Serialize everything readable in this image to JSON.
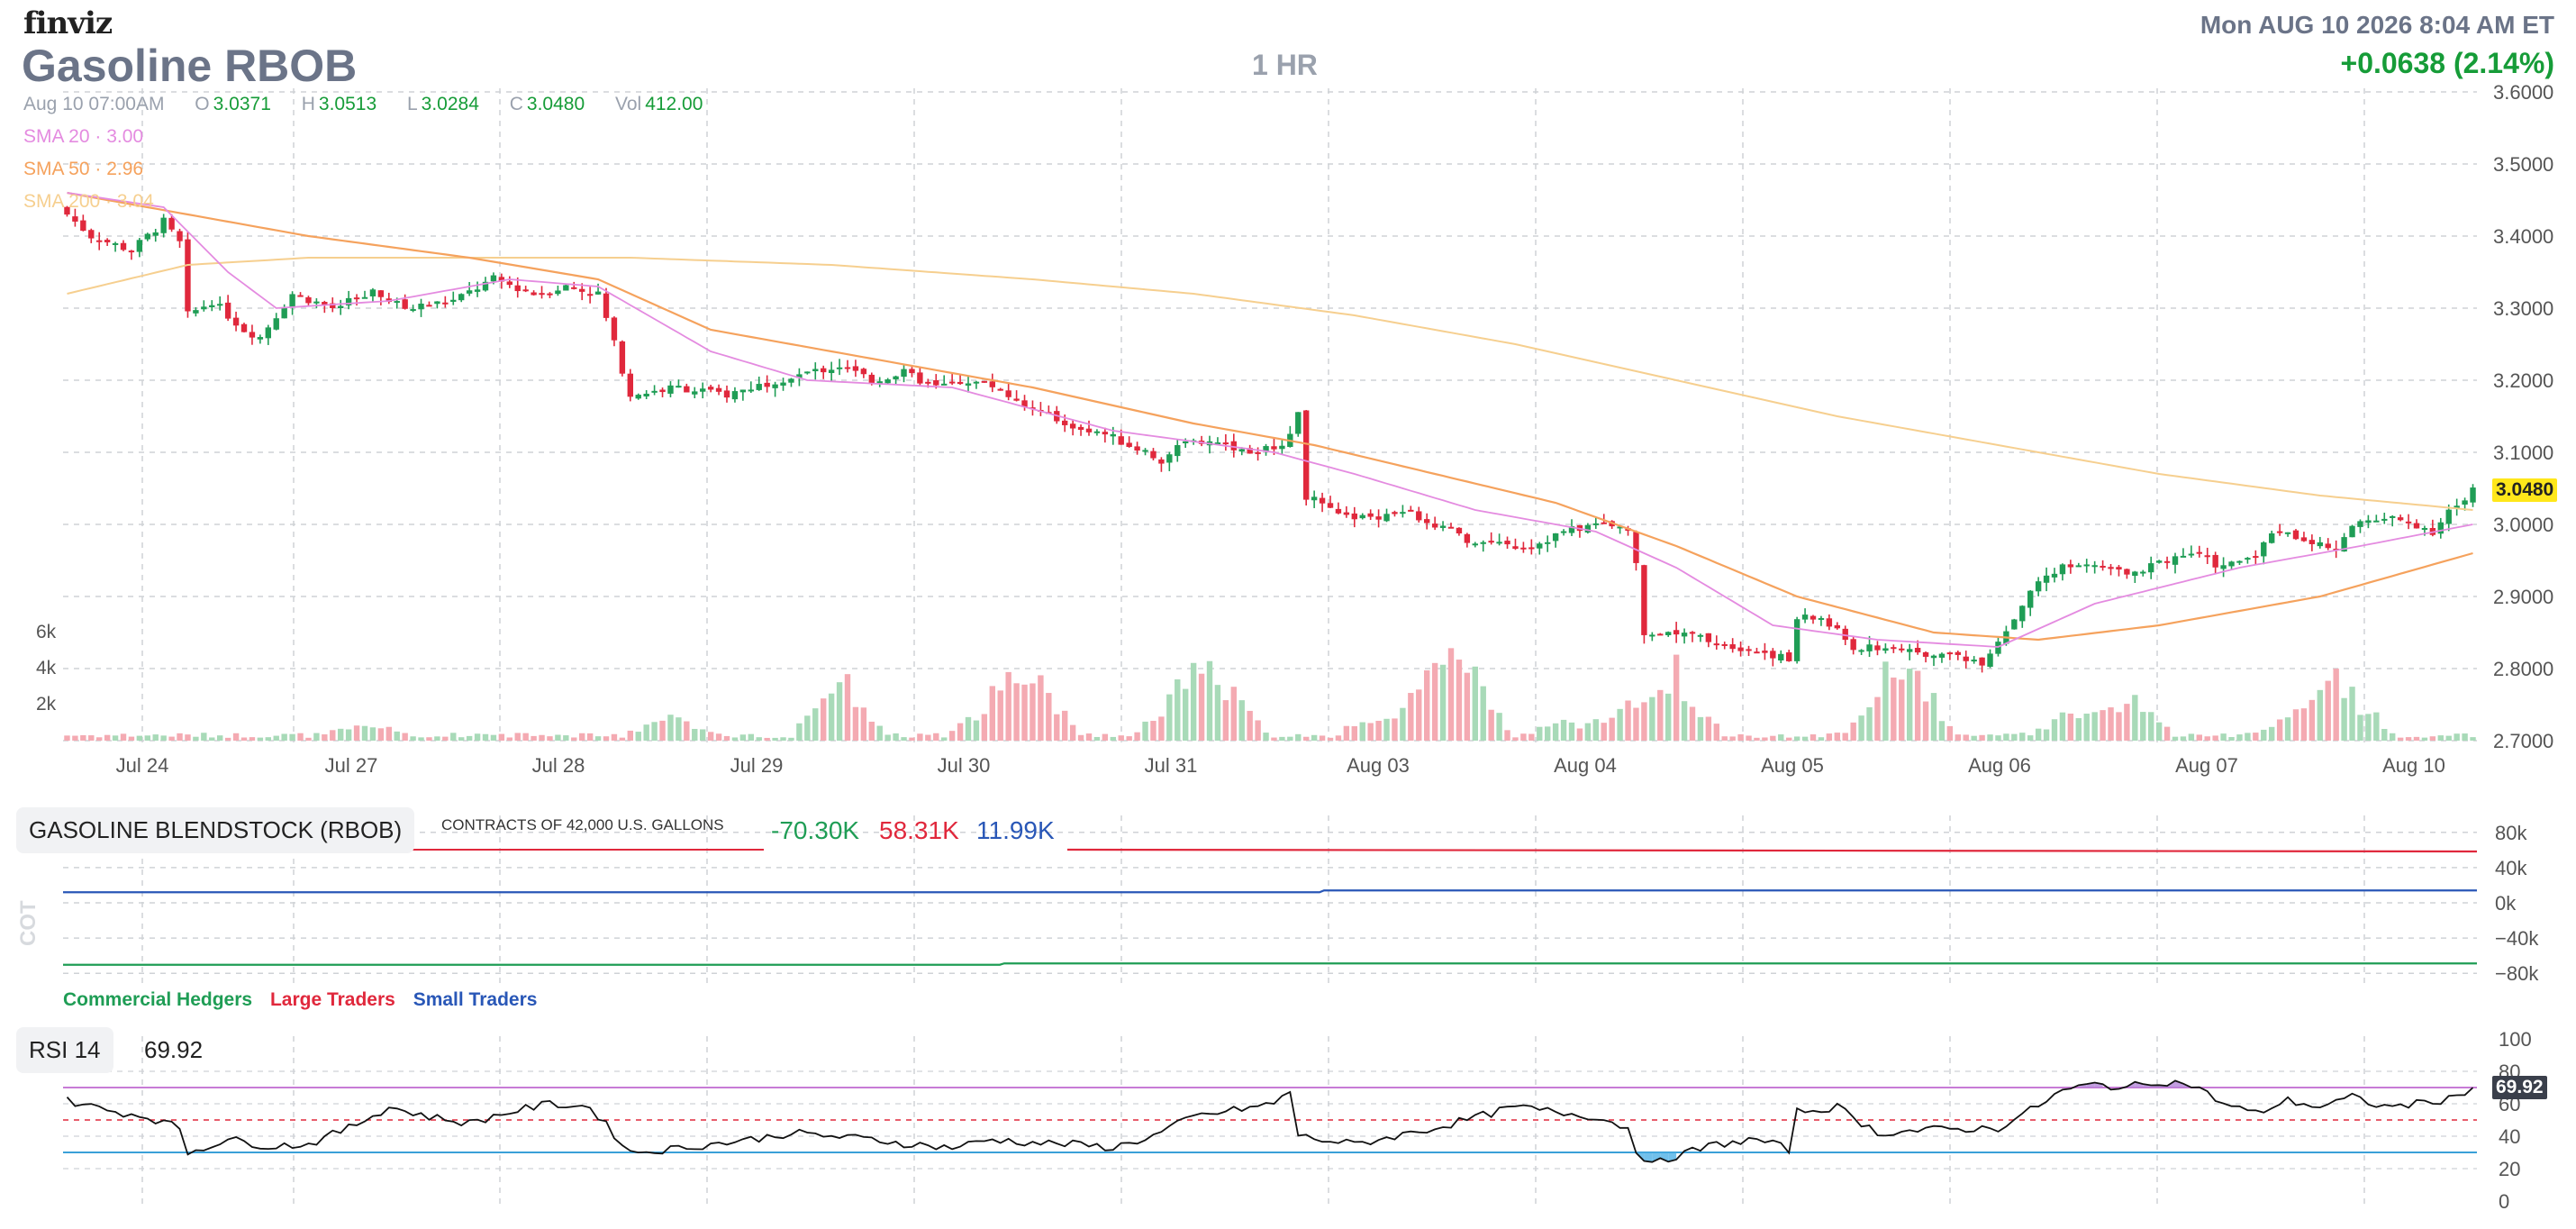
{
  "logo": "finviz",
  "header": {
    "title": "Gasoline RBOB",
    "timeframe": "1 HR",
    "datetime": "Mon AUG 10 2026 8:04 AM ET",
    "change": "+0.0638 (2.14%)"
  },
  "ohlc": {
    "date": "Aug 10 07:00AM",
    "open_label": "O",
    "open": "3.0371",
    "high_label": "H",
    "high": "3.0513",
    "low_label": "L",
    "low": "3.0284",
    "close_label": "C",
    "close": "3.0480",
    "vol_label": "Vol",
    "vol": "412.00"
  },
  "sma": [
    {
      "text": "SMA 20 · 3.00",
      "color": "#e48be0"
    },
    {
      "text": "SMA 50 · 2.96",
      "color": "#f5a25d"
    },
    {
      "text": "SMA 200 · 3.04",
      "color": "#f6cf8f"
    }
  ],
  "colors": {
    "up": "#1f9d55",
    "down": "#e0283c",
    "vol_up": "#a8dab8",
    "vol_down": "#f4aab2",
    "grid": "#cfd2d6"
  },
  "price_tag": "3.0480",
  "chart_data": [
    {
      "type": "line",
      "name": "price",
      "y_ticks": [
        "3.6000",
        "3.5000",
        "3.4000",
        "3.3000",
        "3.2000",
        "3.1000",
        "3.0000",
        "2.9000",
        "2.8000",
        "2.7000"
      ],
      "ylim": [
        2.7,
        3.6
      ],
      "x_ticks": [
        "Jul 24",
        "Jul 27",
        "Jul 28",
        "Jul 29",
        "Jul 30",
        "Jul 31",
        "Aug 03",
        "Aug 04",
        "Aug 05",
        "Aug 06",
        "Aug 07",
        "Aug 10"
      ],
      "close_anchors": [
        [
          0,
          3.43
        ],
        [
          3,
          3.4
        ],
        [
          8,
          3.38
        ],
        [
          12,
          3.42
        ],
        [
          14,
          3.39
        ],
        [
          15,
          3.29
        ],
        [
          18,
          3.31
        ],
        [
          22,
          3.27
        ],
        [
          24,
          3.26
        ],
        [
          28,
          3.32
        ],
        [
          33,
          3.3
        ],
        [
          38,
          3.32
        ],
        [
          42,
          3.3
        ],
        [
          48,
          3.31
        ],
        [
          53,
          3.34
        ],
        [
          58,
          3.32
        ],
        [
          62,
          3.33
        ],
        [
          66,
          3.32
        ],
        [
          70,
          3.18
        ],
        [
          76,
          3.19
        ],
        [
          82,
          3.18
        ],
        [
          88,
          3.2
        ],
        [
          92,
          3.21
        ],
        [
          96,
          3.22
        ],
        [
          100,
          3.2
        ],
        [
          104,
          3.21
        ],
        [
          108,
          3.19
        ],
        [
          112,
          3.2
        ],
        [
          116,
          3.19
        ],
        [
          120,
          3.16
        ],
        [
          124,
          3.14
        ],
        [
          128,
          3.13
        ],
        [
          132,
          3.11
        ],
        [
          136,
          3.09
        ],
        [
          140,
          3.12
        ],
        [
          144,
          3.11
        ],
        [
          148,
          3.1
        ],
        [
          152,
          3.12
        ],
        [
          153,
          3.16
        ],
        [
          154,
          3.04
        ],
        [
          158,
          3.01
        ],
        [
          162,
          3.01
        ],
        [
          166,
          3.02
        ],
        [
          170,
          3.0
        ],
        [
          174,
          2.98
        ],
        [
          178,
          2.97
        ],
        [
          182,
          2.97
        ],
        [
          186,
          2.99
        ],
        [
          190,
          3.0
        ],
        [
          194,
          2.99
        ],
        [
          195,
          2.95
        ],
        [
          196,
          2.85
        ],
        [
          200,
          2.85
        ],
        [
          204,
          2.84
        ],
        [
          208,
          2.83
        ],
        [
          212,
          2.82
        ],
        [
          214,
          2.81
        ],
        [
          215,
          2.87
        ],
        [
          218,
          2.87
        ],
        [
          222,
          2.83
        ],
        [
          226,
          2.83
        ],
        [
          230,
          2.82
        ],
        [
          234,
          2.82
        ],
        [
          238,
          2.81
        ],
        [
          240,
          2.84
        ],
        [
          242,
          2.87
        ],
        [
          244,
          2.91
        ],
        [
          248,
          2.94
        ],
        [
          252,
          2.94
        ],
        [
          256,
          2.93
        ],
        [
          260,
          2.95
        ],
        [
          264,
          2.96
        ],
        [
          268,
          2.94
        ],
        [
          272,
          2.96
        ],
        [
          274,
          2.99
        ],
        [
          278,
          2.98
        ],
        [
          282,
          2.96
        ],
        [
          284,
          3.0
        ],
        [
          288,
          3.01
        ],
        [
          292,
          3.0
        ],
        [
          294,
          2.99
        ],
        [
          296,
          3.02
        ],
        [
          298,
          3.03
        ],
        [
          299,
          3.048
        ]
      ],
      "sma20_anchors": [
        [
          0,
          3.46
        ],
        [
          12,
          3.44
        ],
        [
          20,
          3.35
        ],
        [
          26,
          3.3
        ],
        [
          40,
          3.31
        ],
        [
          55,
          3.34
        ],
        [
          66,
          3.33
        ],
        [
          80,
          3.24
        ],
        [
          92,
          3.2
        ],
        [
          110,
          3.19
        ],
        [
          130,
          3.13
        ],
        [
          150,
          3.1
        ],
        [
          160,
          3.07
        ],
        [
          175,
          3.02
        ],
        [
          190,
          2.99
        ],
        [
          200,
          2.94
        ],
        [
          212,
          2.86
        ],
        [
          225,
          2.84
        ],
        [
          240,
          2.83
        ],
        [
          252,
          2.89
        ],
        [
          270,
          2.94
        ],
        [
          285,
          2.97
        ],
        [
          299,
          3.0
        ]
      ],
      "sma50_anchors": [
        [
          0,
          3.46
        ],
        [
          15,
          3.43
        ],
        [
          30,
          3.4
        ],
        [
          50,
          3.37
        ],
        [
          66,
          3.34
        ],
        [
          80,
          3.27
        ],
        [
          100,
          3.23
        ],
        [
          120,
          3.19
        ],
        [
          140,
          3.14
        ],
        [
          155,
          3.11
        ],
        [
          170,
          3.07
        ],
        [
          185,
          3.03
        ],
        [
          200,
          2.97
        ],
        [
          215,
          2.9
        ],
        [
          232,
          2.85
        ],
        [
          245,
          2.84
        ],
        [
          260,
          2.86
        ],
        [
          280,
          2.9
        ],
        [
          299,
          2.96
        ]
      ],
      "sma200_anchors": [
        [
          0,
          3.32
        ],
        [
          15,
          3.36
        ],
        [
          30,
          3.37
        ],
        [
          50,
          3.37
        ],
        [
          70,
          3.37
        ],
        [
          95,
          3.36
        ],
        [
          120,
          3.34
        ],
        [
          140,
          3.32
        ],
        [
          160,
          3.29
        ],
        [
          180,
          3.25
        ],
        [
          200,
          3.2
        ],
        [
          220,
          3.15
        ],
        [
          240,
          3.11
        ],
        [
          260,
          3.07
        ],
        [
          280,
          3.04
        ],
        [
          299,
          3.02
        ]
      ]
    },
    {
      "type": "bar",
      "name": "volume",
      "y_ticks": [
        "6k",
        "4k",
        "2k"
      ],
      "bursts": [
        [
          38,
          0.2
        ],
        [
          75,
          0.3
        ],
        [
          96,
          1.0
        ],
        [
          115,
          0.55
        ],
        [
          120,
          1.0
        ],
        [
          138,
          0.6
        ],
        [
          143,
          1.0
        ],
        [
          163,
          0.3
        ],
        [
          170,
          0.9
        ],
        [
          174,
          1.0
        ],
        [
          186,
          0.2
        ],
        [
          194,
          0.45
        ],
        [
          200,
          1.0
        ],
        [
          226,
          0.5
        ],
        [
          229,
          1.0
        ],
        [
          250,
          0.4
        ],
        [
          256,
          0.6
        ],
        [
          278,
          0.45
        ],
        [
          283,
          0.8
        ]
      ]
    },
    {
      "type": "line",
      "name": "cot",
      "y_ticks": [
        "80k",
        "40k",
        "0k",
        "−40k",
        "−80k"
      ],
      "ylim": [
        -90,
        90
      ],
      "values": [
        "-70.30K",
        "58.31K",
        "11.99K"
      ],
      "legend": [
        "Commercial Hedgers",
        "Large Traders",
        "Small Traders"
      ],
      "colors": [
        "#1f9d55",
        "#e0283c",
        "#2957b7"
      ]
    },
    {
      "type": "line",
      "name": "rsi",
      "y_ticks": [
        "100",
        "80",
        "60",
        "40",
        "20",
        "0"
      ],
      "ylim": [
        0,
        100
      ],
      "levels": [
        70,
        50,
        30
      ],
      "anchors": [
        [
          0,
          62
        ],
        [
          5,
          56
        ],
        [
          10,
          52
        ],
        [
          14,
          45
        ],
        [
          15,
          30
        ],
        [
          20,
          38
        ],
        [
          25,
          34
        ],
        [
          30,
          35
        ],
        [
          35,
          45
        ],
        [
          40,
          58
        ],
        [
          45,
          52
        ],
        [
          50,
          48
        ],
        [
          55,
          55
        ],
        [
          60,
          60
        ],
        [
          65,
          58
        ],
        [
          70,
          30
        ],
        [
          75,
          32
        ],
        [
          80,
          35
        ],
        [
          85,
          38
        ],
        [
          90,
          42
        ],
        [
          95,
          40
        ],
        [
          100,
          38
        ],
        [
          105,
          35
        ],
        [
          110,
          33
        ],
        [
          115,
          38
        ],
        [
          120,
          36
        ],
        [
          125,
          35
        ],
        [
          130,
          33
        ],
        [
          135,
          40
        ],
        [
          140,
          52
        ],
        [
          145,
          56
        ],
        [
          150,
          60
        ],
        [
          152,
          68
        ],
        [
          153,
          40
        ],
        [
          160,
          35
        ],
        [
          170,
          45
        ],
        [
          180,
          58
        ],
        [
          190,
          52
        ],
        [
          194,
          45
        ],
        [
          195,
          32
        ],
        [
          197,
          22
        ],
        [
          200,
          28
        ],
        [
          205,
          35
        ],
        [
          210,
          38
        ],
        [
          214,
          32
        ],
        [
          215,
          55
        ],
        [
          220,
          58
        ],
        [
          225,
          42
        ],
        [
          232,
          44
        ],
        [
          240,
          45
        ],
        [
          244,
          56
        ],
        [
          248,
          68
        ],
        [
          252,
          72
        ],
        [
          256,
          70
        ],
        [
          260,
          74
        ],
        [
          264,
          72
        ],
        [
          268,
          60
        ],
        [
          272,
          54
        ],
        [
          276,
          62
        ],
        [
          280,
          58
        ],
        [
          284,
          64
        ],
        [
          288,
          58
        ],
        [
          292,
          60
        ],
        [
          296,
          63
        ],
        [
          299,
          69.92
        ]
      ],
      "value": "69.92"
    }
  ],
  "cot_panel": {
    "label": "GASOLINE BLENDSTOCK (RBOB)",
    "units": "CONTRACTS OF 42,000 U.S. GALLONS",
    "side_label": "COT"
  },
  "rsi_panel": {
    "label": "RSI 14",
    "value": "69.92",
    "tag": "69.92"
  }
}
